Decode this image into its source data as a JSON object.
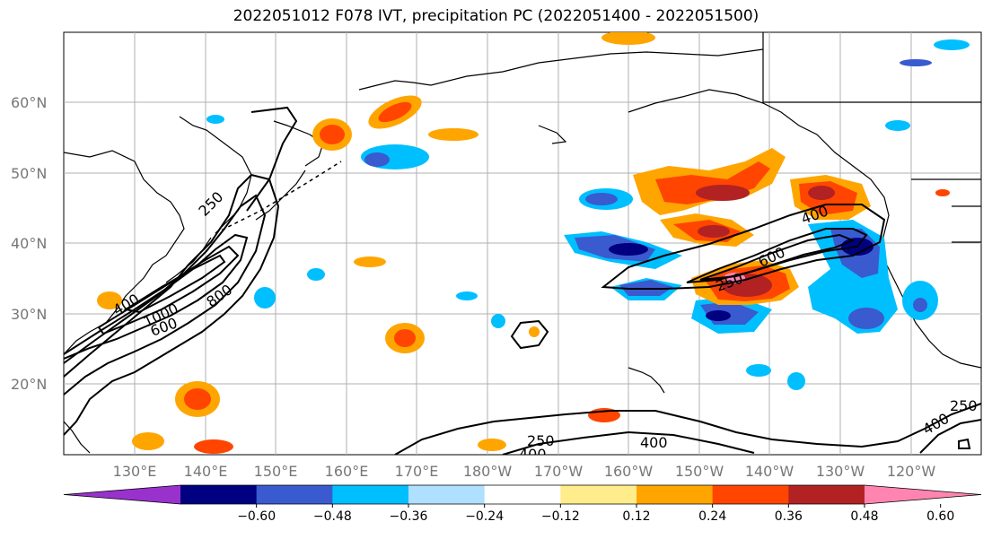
{
  "title": "2022051012 F078 IVT, precipitation PC (2022051400 - 2022051500)",
  "lat_labels": [
    "60°N",
    "50°N",
    "40°N",
    "30°N",
    "20°N"
  ],
  "lon_labels": [
    "130°E",
    "140°E",
    "150°E",
    "160°E",
    "170°E",
    "180°W",
    "170°W",
    "160°W",
    "150°W",
    "140°W",
    "130°W",
    "120°W"
  ],
  "contour_labels": [
    "250",
    "400",
    "600",
    "800",
    "1000",
    "400",
    "250",
    "600",
    "400",
    "250",
    "400",
    "250",
    "400"
  ],
  "colorbar": {
    "colors": [
      "#9932cc",
      "#000080",
      "#3a5acf",
      "#00bfff",
      "#b0e0ff",
      "#ffffff",
      "#ffec8b",
      "#ffa500",
      "#ff4500",
      "#b22222",
      "#ff85b0"
    ],
    "labels": [
      "−0.60",
      "−0.48",
      "−0.36",
      "−0.24",
      "−0.12",
      "0.12",
      "0.24",
      "0.36",
      "0.48",
      "0.60"
    ]
  }
}
